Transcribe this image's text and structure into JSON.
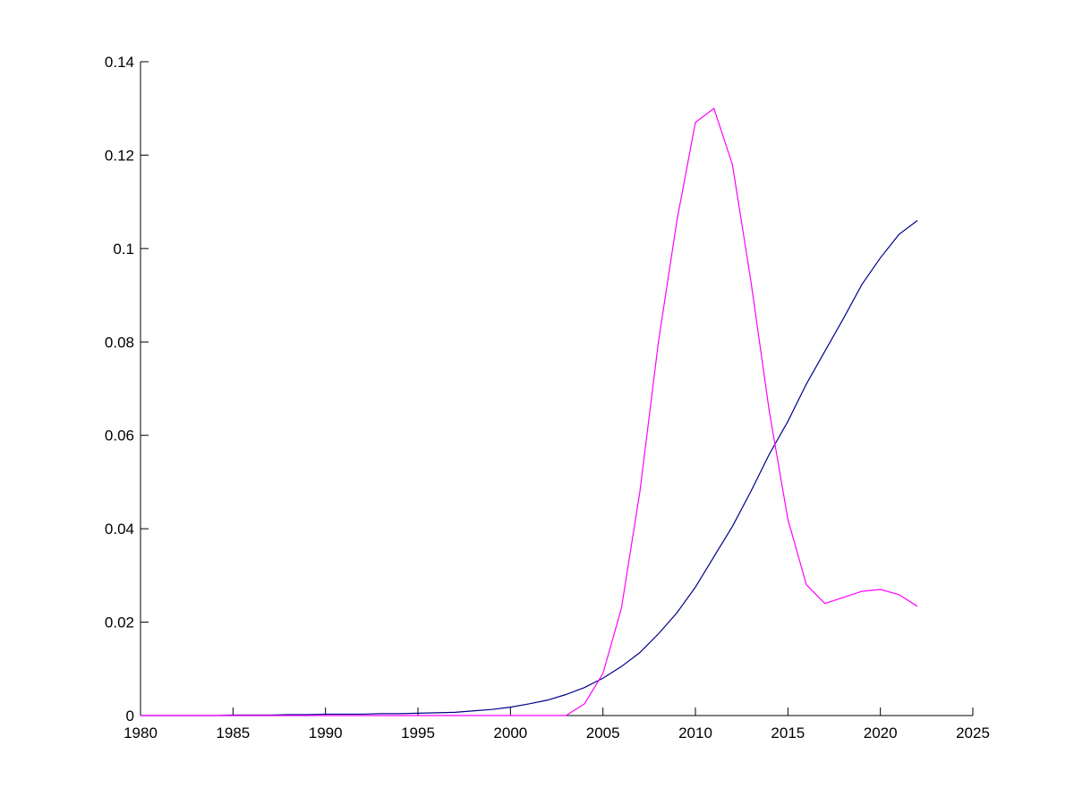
{
  "chart_data": {
    "type": "line",
    "x": [
      1980,
      1981,
      1982,
      1983,
      1984,
      1985,
      1986,
      1987,
      1988,
      1989,
      1990,
      1991,
      1992,
      1993,
      1994,
      1995,
      1996,
      1997,
      1998,
      1999,
      2000,
      2001,
      2002,
      2003,
      2004,
      2005,
      2006,
      2007,
      2008,
      2009,
      2010,
      2011,
      2012,
      2013,
      2014,
      2015,
      2016,
      2017,
      2018,
      2019,
      2020,
      2021,
      2022
    ],
    "series": [
      {
        "color": "#00008b",
        "values": [
          0,
          0,
          0,
          0,
          0,
          0.0001,
          0.0001,
          0.0001,
          0.0002,
          0.0002,
          0.0003,
          0.0003,
          0.0003,
          0.0004,
          0.0004,
          0.0005,
          0.0006,
          0.0007,
          0.001,
          0.0013,
          0.0018,
          0.0025,
          0.0033,
          0.0045,
          0.006,
          0.008,
          0.0105,
          0.0135,
          0.0175,
          0.022,
          0.0275,
          0.034,
          0.0405,
          0.048,
          0.056,
          0.063,
          0.071,
          0.078,
          0.085,
          0.0923,
          0.098,
          0.103,
          0.106
        ]
      },
      {
        "color": "#ff00ff",
        "values": [
          0,
          0,
          0,
          0,
          0,
          0,
          0,
          0,
          0,
          0,
          0,
          0,
          0,
          0,
          0,
          0,
          0,
          0,
          0,
          0,
          0,
          0,
          0,
          0,
          0.0025,
          0.009,
          0.023,
          0.048,
          0.08,
          0.106,
          0.127,
          0.13,
          0.118,
          0.093,
          0.065,
          0.042,
          0.028,
          0.024,
          0.0253,
          0.0266,
          0.027,
          0.0259,
          0.0234
        ]
      }
    ],
    "xlim": [
      1980,
      2025
    ],
    "xticks": [
      1980,
      1985,
      1990,
      1995,
      2000,
      2005,
      2010,
      2015,
      2020,
      2025
    ],
    "ylim": [
      0,
      0.14
    ],
    "yticks": [
      0,
      0.02,
      0.04,
      0.06,
      0.08,
      0.1,
      0.12,
      0.14
    ]
  }
}
